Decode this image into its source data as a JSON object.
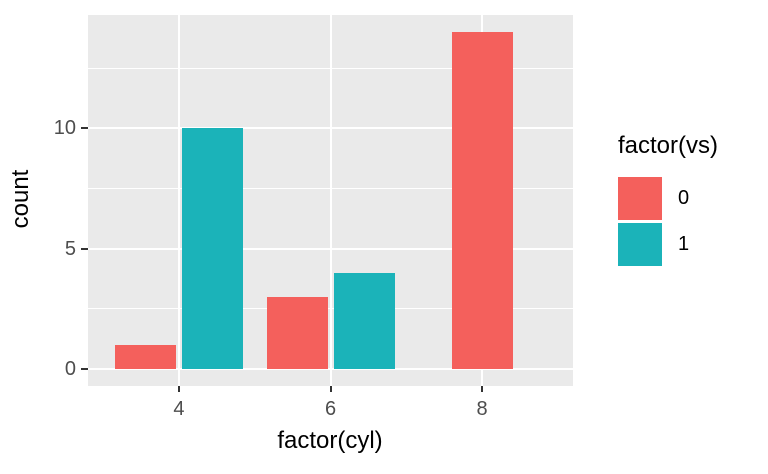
{
  "chart_data": {
    "type": "bar",
    "title": "",
    "xlabel": "factor(cyl)",
    "ylabel": "count",
    "categories": [
      "4",
      "6",
      "8"
    ],
    "series": [
      {
        "name": "0",
        "color": "#F4605C",
        "values": [
          1,
          3,
          14
        ]
      },
      {
        "name": "1",
        "color": "#1BB3B9",
        "values": [
          10,
          4,
          0
        ]
      }
    ],
    "legend_title": "factor(vs)",
    "legend_position": "right",
    "ylim": [
      -0.7,
      14.7
    ],
    "y_major_ticks": [
      0,
      5,
      10
    ],
    "y_minor_ticks": [
      2.5,
      7.5,
      12.5
    ],
    "grid": true,
    "bar_position": "dodge",
    "panel_background": "#EAEAEA",
    "grid_color": "#FFFFFF",
    "axis_text_color": "#4D4D4D",
    "title_text_color": "#000000",
    "tick_mark_color": "#333333"
  }
}
